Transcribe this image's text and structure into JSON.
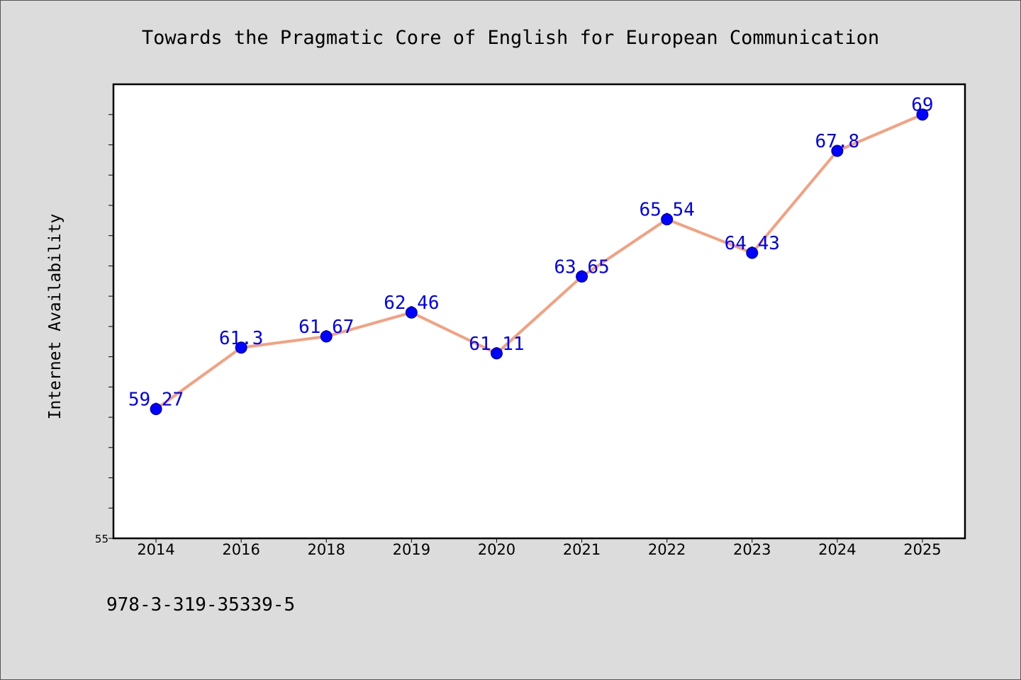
{
  "chart_data": {
    "type": "line",
    "title": "Towards the Pragmatic Core of English for European Communication",
    "ylabel": "Internet Availability",
    "categories": [
      "2014",
      "2016",
      "2018",
      "2019",
      "2020",
      "2021",
      "2022",
      "2023",
      "2024",
      "2025"
    ],
    "series": [
      {
        "values": [
          59.27,
          61.3,
          61.67,
          62.46,
          61.11,
          63.65,
          65.54,
          64.43,
          67.8,
          69
        ]
      }
    ],
    "data_labels": true,
    "ylim": [
      55,
      70
    ],
    "yticks": [
      55
    ],
    "ytick_interval": 1,
    "grid": false,
    "legend": "none",
    "colors": {
      "background": "#dcdcdc",
      "plot_background": "#ffffff",
      "axes": "#000000",
      "line": "#f5a07f",
      "marker": "#0000ff",
      "marker_edge": "#00008b",
      "data_label": "#0000ff"
    }
  },
  "footnote": "978-3-319-35339-5"
}
